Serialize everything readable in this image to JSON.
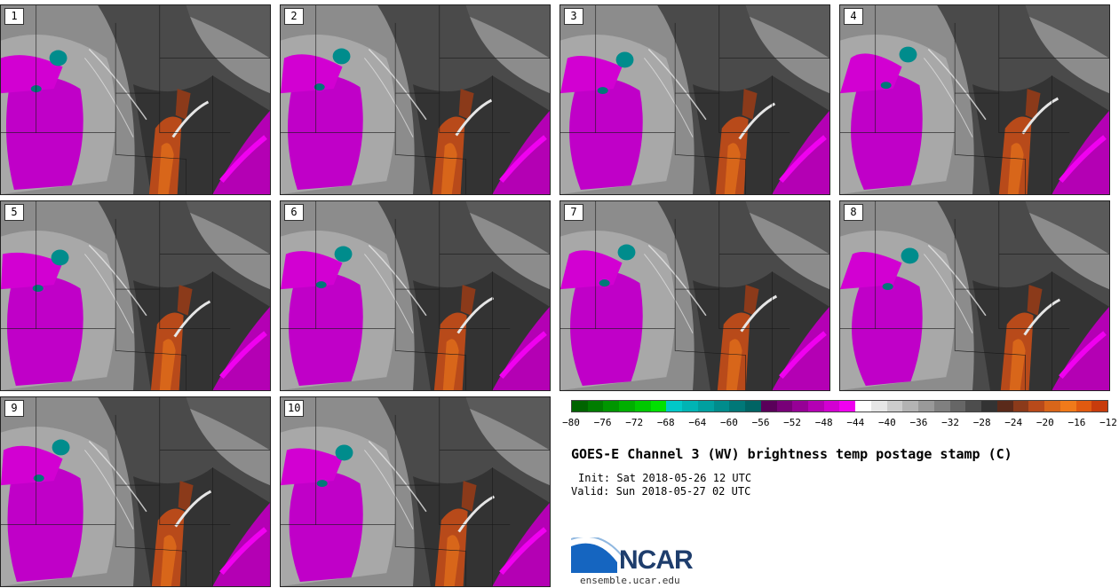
{
  "panels": [
    {
      "label": "1"
    },
    {
      "label": "2"
    },
    {
      "label": "3"
    },
    {
      "label": "4"
    },
    {
      "label": "5"
    },
    {
      "label": "6"
    },
    {
      "label": "7"
    },
    {
      "label": "8"
    },
    {
      "label": "9"
    },
    {
      "label": "10"
    }
  ],
  "colorbar": {
    "colors": [
      "#006400",
      "#007d00",
      "#009600",
      "#00af00",
      "#00c800",
      "#00e100",
      "#00c8c8",
      "#00b4b4",
      "#00a0a0",
      "#008c8c",
      "#007878",
      "#006464",
      "#5a005a",
      "#780078",
      "#960096",
      "#b400b4",
      "#d200d2",
      "#f000f0",
      "#ffffff",
      "#e6e6e6",
      "#cccccc",
      "#b3b3b3",
      "#999999",
      "#808080",
      "#666666",
      "#4d4d4d",
      "#333333",
      "#5a2a1a",
      "#8b3a1a",
      "#b84a1a",
      "#d8661a",
      "#f07a1a",
      "#e05a10",
      "#c83c0c"
    ],
    "ticks": [
      "−80",
      "−76",
      "−72",
      "−68",
      "−64",
      "−60",
      "−56",
      "−52",
      "−48",
      "−44",
      "−40",
      "−36",
      "−32",
      "−28",
      "−24",
      "−20",
      "−16",
      "−12"
    ]
  },
  "title": "GOES-E Channel 3 (WV) brightness temp postage stamp (C)",
  "init": "Init: Sat 2018-05-26 12 UTC",
  "valid": "Valid: Sun 2018-05-27 02 UTC",
  "logo": {
    "text": "NCAR",
    "url": "ensemble.ucar.edu"
  }
}
